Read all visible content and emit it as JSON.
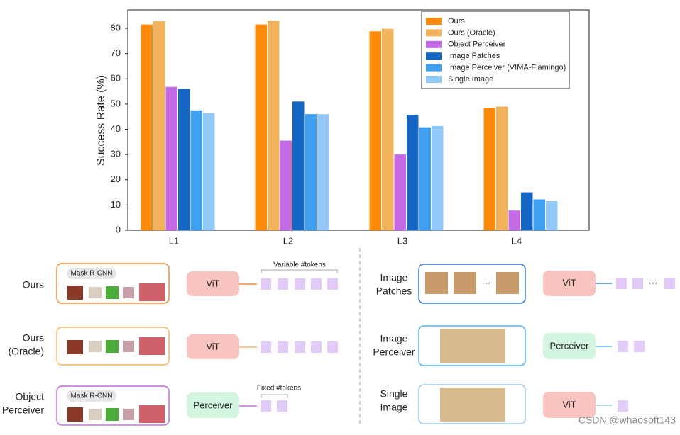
{
  "chart_data": {
    "type": "bar",
    "y_label": "Success Rate (%)",
    "categories": [
      "L1",
      "L2",
      "L3",
      "L4"
    ],
    "series": [
      {
        "name": "Ours",
        "color": "#ff8a0a",
        "values": [
          81.5,
          81.5,
          78.8,
          48.5
        ]
      },
      {
        "name": "Ours (Oracle)",
        "color": "#f2b25c",
        "values": [
          82.8,
          83,
          79.8,
          49
        ]
      },
      {
        "name": "Object Perceiver",
        "color": "#c46ae4",
        "values": [
          56.8,
          35.5,
          30,
          7.8
        ]
      },
      {
        "name": "Image Patches",
        "color": "#1565c4",
        "values": [
          56,
          51,
          45.7,
          15
        ]
      },
      {
        "name": "Image Perceiver (VIMA-Flamingo)",
        "color": "#3fa0f2",
        "values": [
          47.5,
          46,
          40.8,
          12.2
        ]
      },
      {
        "name": "Single Image",
        "color": "#92c9f8",
        "values": [
          46.3,
          46,
          41.3,
          11.5
        ]
      }
    ],
    "ylim": [
      0,
      87.3
    ],
    "yticks": [
      0,
      10,
      20,
      30,
      40,
      50,
      60,
      70,
      80
    ],
    "grid": false,
    "legend": "upper right"
  },
  "diagram": {
    "left": [
      {
        "label": [
          "Ours"
        ],
        "detector": "Mask R-CNN",
        "encoder": "ViT",
        "note": "Variable #tokens"
      },
      {
        "label": [
          "Ours",
          "(Oracle)"
        ],
        "encoder": "ViT"
      },
      {
        "label": [
          "Object",
          "Perceiver"
        ],
        "detector": "Mask R-CNN",
        "encoder": "Perceiver",
        "note": "Fixed #tokens"
      }
    ],
    "right": [
      {
        "label": [
          "Image",
          "Patches"
        ],
        "encoder": "ViT"
      },
      {
        "label": [
          "Image",
          "Perceiver"
        ],
        "encoder": "Perceiver"
      },
      {
        "label": [
          "Single",
          "Image"
        ],
        "encoder": "ViT"
      }
    ],
    "watermark": "CSDN @whaosoft143"
  }
}
